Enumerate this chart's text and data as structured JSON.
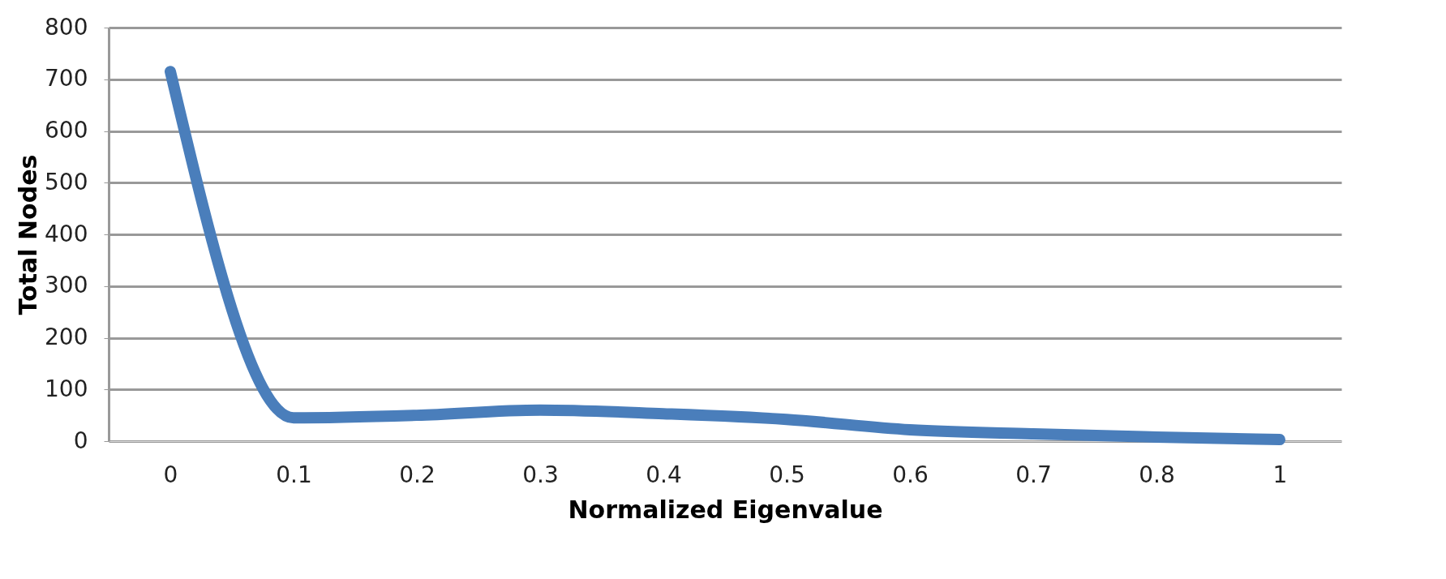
{
  "chart_data": {
    "type": "line",
    "xlabel": "Normalized Eigenvalue",
    "ylabel": "Total Nodes",
    "categories": [
      "0",
      "0.1",
      "0.2",
      "0.3",
      "0.4",
      "0.5",
      "0.6",
      "0.7",
      "0.8",
      "1"
    ],
    "series": [
      {
        "color": "#4a7ebb",
        "values": [
          715,
          45,
          50,
          60,
          53,
          42,
          22,
          14,
          8,
          3
        ]
      }
    ],
    "ylim": [
      0,
      800
    ],
    "yticks": [
      0,
      100,
      200,
      300,
      400,
      500,
      600,
      700,
      800
    ],
    "grid": "y",
    "legend": false,
    "marker": "none",
    "line_style": "solid"
  }
}
